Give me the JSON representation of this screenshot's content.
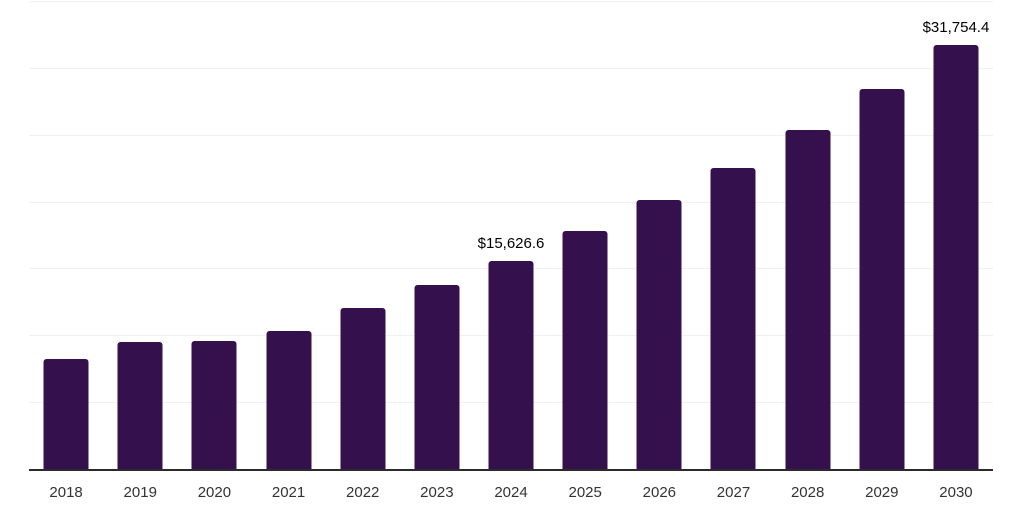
{
  "chart_data": {
    "type": "bar",
    "categories": [
      "2018",
      "2019",
      "2020",
      "2021",
      "2022",
      "2023",
      "2024",
      "2025",
      "2026",
      "2027",
      "2028",
      "2029",
      "2030"
    ],
    "values": [
      8300,
      9540,
      9650,
      10370,
      12120,
      13810,
      15626.6,
      17880,
      20180,
      22610,
      25450,
      28460,
      31754.4
    ],
    "data_labels": [
      null,
      null,
      null,
      null,
      null,
      null,
      "$15,626.6",
      null,
      null,
      null,
      null,
      null,
      "$31,754.4"
    ],
    "xlabel": "",
    "ylabel": "",
    "ylim": [
      0,
      35000
    ],
    "gridline_step": 5000,
    "grid": true,
    "legend": false,
    "value_axis_labels_visible": false,
    "colors": {
      "bar": "#34114d",
      "axis_line": "#2b2b2b",
      "gridline": "#f1f1f4",
      "tick_label": "#333333",
      "data_label": "#000000",
      "background": "#ffffff"
    }
  }
}
